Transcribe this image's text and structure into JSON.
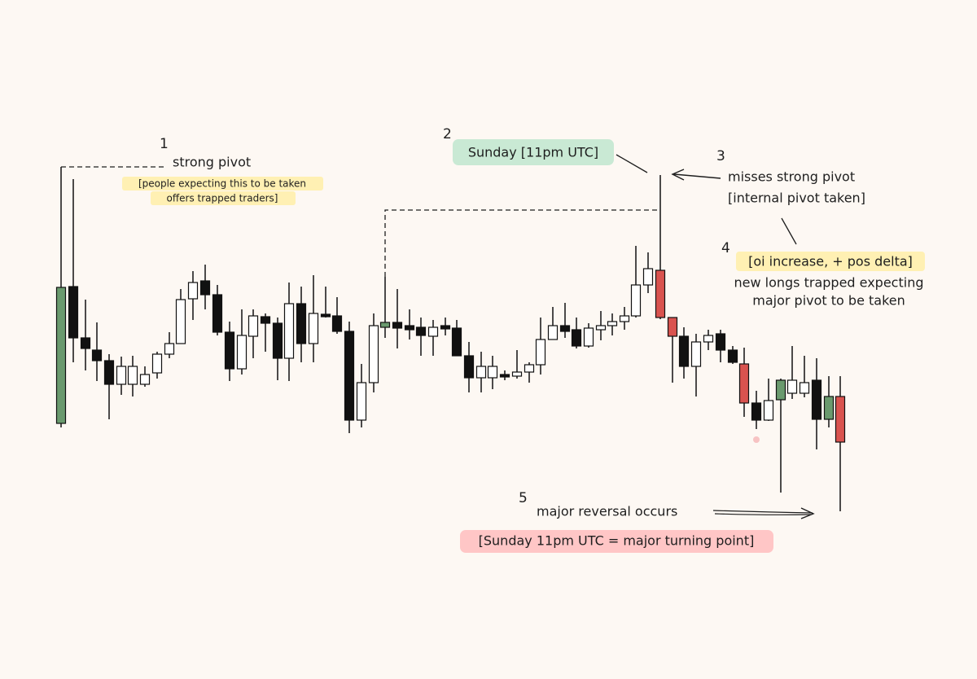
{
  "annotations": [
    {
      "number": "1",
      "label": "strong pivot",
      "note": [
        "[people expecting this to be taken",
        "offers trapped traders]"
      ]
    },
    {
      "number": "2",
      "label": "Sunday [11pm UTC]"
    },
    {
      "number": "3",
      "label": "misses strong pivot",
      "note": [
        "[internal pivot taken]"
      ]
    },
    {
      "number": "4",
      "label": "[oi increase, + pos delta]",
      "note": [
        "new longs trapped expecting",
        "major pivot to be taken"
      ]
    },
    {
      "number": "5",
      "label": "major reversal occurs",
      "note": [
        "[Sunday 11pm UTC = major turning point]"
      ]
    }
  ]
}
